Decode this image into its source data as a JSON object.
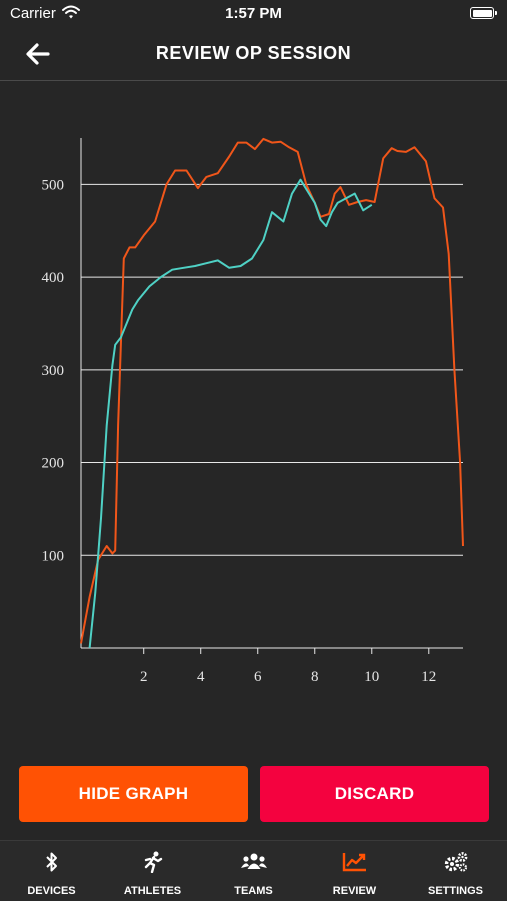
{
  "status_bar": {
    "carrier": "Carrier",
    "time": "1:57 PM"
  },
  "header": {
    "title": "REVIEW OP SESSION",
    "back_icon": "arrow-left-icon"
  },
  "colors": {
    "series_a": "#f0561a",
    "series_b": "#4fd1c5",
    "accent": "#ff5204",
    "danger": "#f4023f",
    "active_tab": "#ff5204"
  },
  "chart_data": {
    "type": "line",
    "title": "",
    "xlabel": "",
    "ylabel": "",
    "xlim": [
      -0.2,
      13.2
    ],
    "ylim": [
      0,
      550
    ],
    "xticks": [
      2,
      4,
      6,
      8,
      10,
      12
    ],
    "yticks": [
      100,
      200,
      300,
      400,
      500
    ],
    "grid": "horizontal",
    "series": [
      {
        "color": "#f0561a",
        "x": [
          -0.2,
          0.1,
          0.4,
          0.7,
          0.9,
          1.0,
          1.1,
          1.3,
          1.5,
          1.7,
          2.0,
          2.4,
          2.8,
          3.1,
          3.5,
          3.9,
          4.2,
          4.6,
          5.0,
          5.3,
          5.6,
          5.9,
          6.2,
          6.5,
          6.8,
          7.1,
          7.4,
          7.7,
          8.0,
          8.2,
          8.5,
          8.7,
          8.9,
          9.2,
          9.5,
          9.8,
          10.1,
          10.4,
          10.7,
          10.9,
          11.2,
          11.5,
          11.9,
          12.2,
          12.5,
          12.7,
          12.9,
          13.1,
          13.2
        ],
        "y": [
          5,
          55,
          95,
          110,
          102,
          105,
          240,
          420,
          432,
          432,
          445,
          460,
          500,
          515,
          515,
          496,
          508,
          512,
          530,
          545,
          545,
          538,
          549,
          545,
          546,
          540,
          535,
          500,
          480,
          465,
          468,
          490,
          497,
          478,
          481,
          483,
          481,
          528,
          539,
          536,
          535,
          540,
          525,
          485,
          475,
          425,
          300,
          200,
          110
        ]
      },
      {
        "color": "#4fd1c5",
        "x": [
          0.1,
          0.3,
          0.5,
          0.7,
          0.9,
          1.0,
          1.2,
          1.4,
          1.6,
          1.8,
          2.2,
          2.6,
          3.0,
          3.4,
          3.8,
          4.2,
          4.6,
          5.0,
          5.4,
          5.8,
          6.2,
          6.5,
          6.9,
          7.2,
          7.5,
          7.7,
          8.0,
          8.2,
          8.4,
          8.6,
          8.8,
          9.1,
          9.4,
          9.7,
          10.0
        ],
        "y": [
          0,
          60,
          140,
          240,
          305,
          327,
          335,
          350,
          365,
          375,
          390,
          400,
          408,
          410,
          412,
          415,
          418,
          410,
          412,
          420,
          440,
          470,
          460,
          490,
          505,
          495,
          480,
          462,
          455,
          470,
          480,
          485,
          490,
          472,
          478
        ]
      }
    ]
  },
  "actions": {
    "hide_graph": "HIDE GRAPH",
    "discard": "DISCARD"
  },
  "tabs": [
    {
      "label": "DEVICES",
      "icon": "bluetooth-icon",
      "active": false
    },
    {
      "label": "ATHLETES",
      "icon": "runner-icon",
      "active": false
    },
    {
      "label": "TEAMS",
      "icon": "group-icon",
      "active": false
    },
    {
      "label": "REVIEW",
      "icon": "chart-line-icon",
      "active": true
    },
    {
      "label": "SETTINGS",
      "icon": "gears-icon",
      "active": false
    }
  ]
}
